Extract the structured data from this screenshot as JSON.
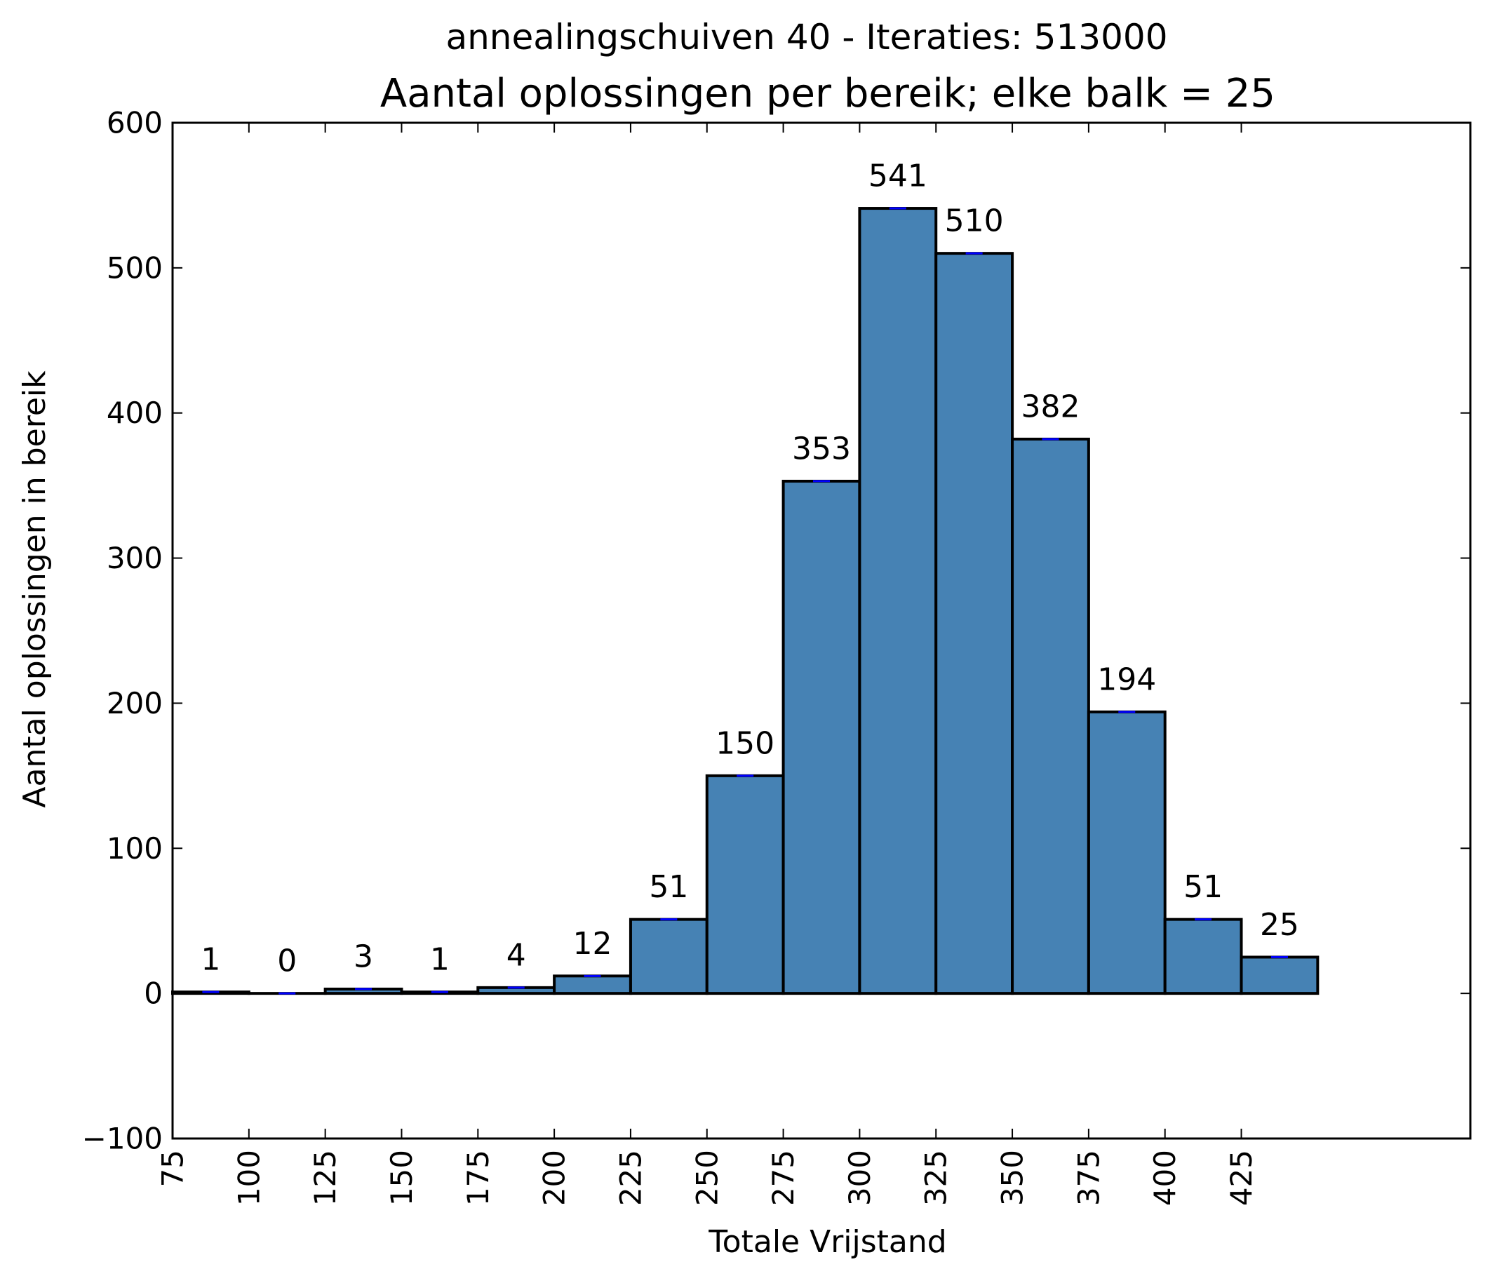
{
  "chart_data": {
    "type": "bar",
    "suptitle": "annealingschuiven 40 - Iteraties: 513000",
    "title": "Aantal oplossingen per bereik; elke balk = 25",
    "xlabel": "Totale Vrijstand",
    "ylabel": "Aantal oplossingen in bereik",
    "bin_edges": [
      75,
      100,
      125,
      150,
      175,
      200,
      225,
      250,
      275,
      300,
      325,
      350,
      375,
      400,
      425,
      450
    ],
    "values": [
      1,
      0,
      3,
      1,
      4,
      12,
      51,
      150,
      353,
      541,
      510,
      382,
      194,
      51,
      25
    ],
    "data_labels": [
      "1",
      "0",
      "3",
      "1",
      "4",
      "12",
      "51",
      "150",
      "353",
      "541",
      "510",
      "382",
      "194",
      "51",
      "25"
    ],
    "xlim": [
      75,
      500
    ],
    "ylim": [
      -100,
      600
    ],
    "xticks": [
      75,
      100,
      125,
      150,
      175,
      200,
      225,
      250,
      275,
      300,
      325,
      350,
      375,
      400,
      425
    ],
    "xtick_labels": [
      "75",
      "100",
      "125",
      "150",
      "175",
      "200",
      "225",
      "250",
      "275",
      "300",
      "325",
      "350",
      "375",
      "400",
      "425"
    ],
    "yticks": [
      -100,
      0,
      100,
      200,
      300,
      400,
      500,
      600
    ],
    "ytick_labels": [
      "−100",
      "0",
      "100",
      "200",
      "300",
      "400",
      "500",
      "600"
    ],
    "grid": false,
    "legend": "none",
    "colors": {
      "bar_fill": "#4682b4",
      "bar_edge": "#000000",
      "error_bar": "#0000ff"
    }
  }
}
